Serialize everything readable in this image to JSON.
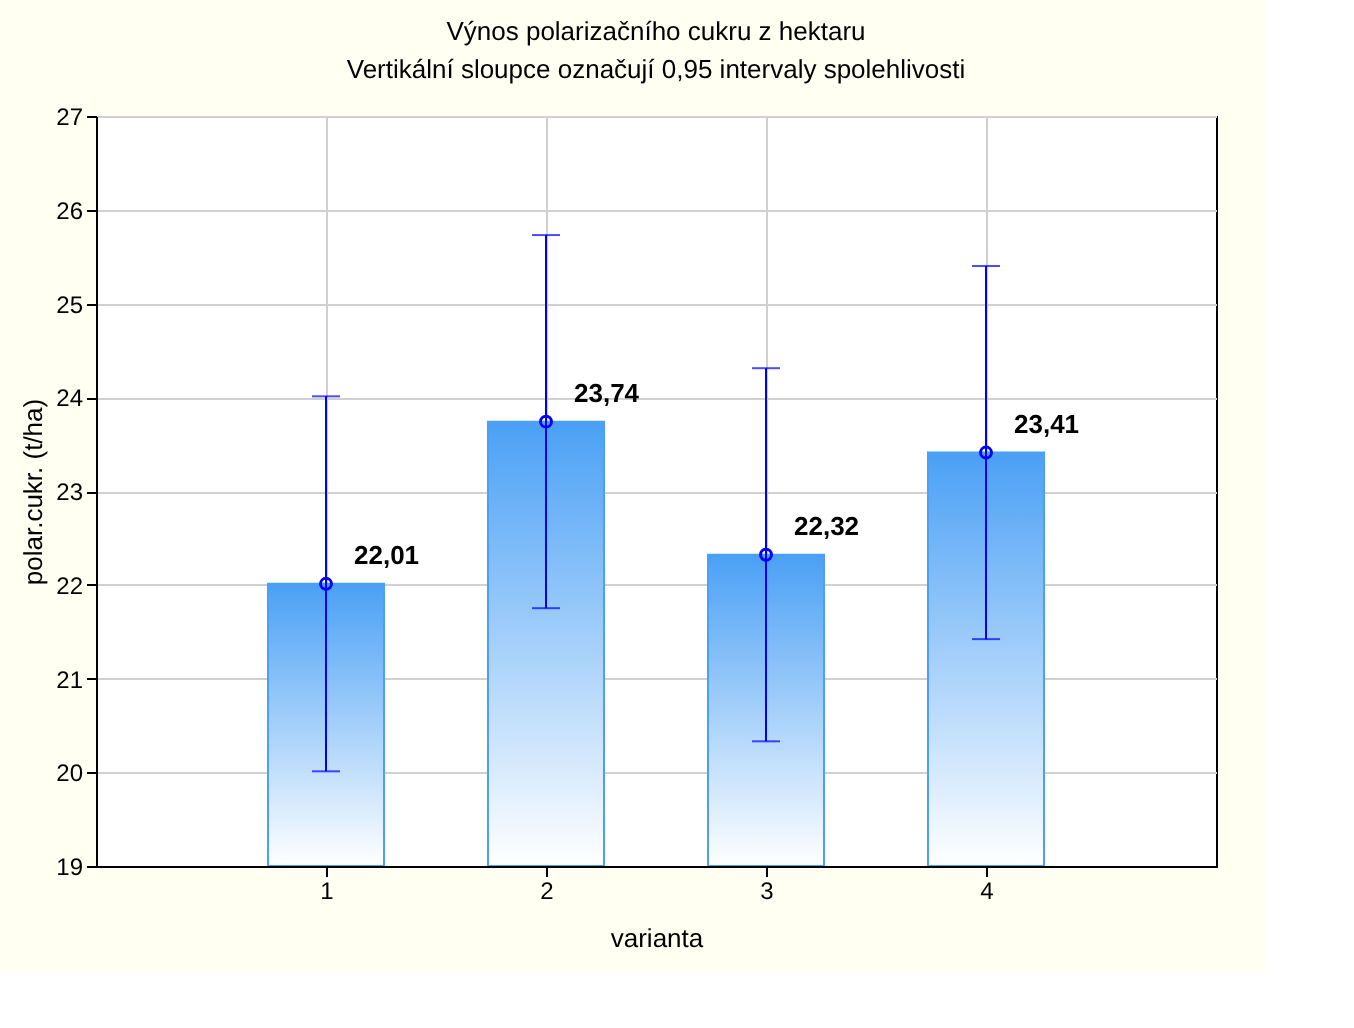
{
  "chart_data": {
    "type": "bar",
    "title": "Výnos polarizačního cukru z hektaru",
    "subtitle": "Vertikální sloupce označují 0,95 intervaly spolehlivosti",
    "xlabel": "varianta",
    "ylabel": "polar.cukr. (t/ha)",
    "categories": [
      "1",
      "2",
      "3",
      "4"
    ],
    "series": [
      {
        "color": "#4aa0f5",
        "values": [
          22.01,
          23.74,
          22.32,
          23.41
        ]
      },
      {
        "type": "scatter",
        "x": [
          "1",
          "2",
          "3",
          "4"
        ],
        "color": "#0000ff",
        "values": [
          22.01,
          23.74,
          22.32,
          23.41
        ],
        "errors": [
          2.0,
          1.99,
          1.99,
          1.99
        ],
        "value_labels": [
          "22,01",
          "23,74",
          "22,32",
          "23,41"
        ]
      }
    ],
    "ylim": [
      19,
      27
    ],
    "yticks": [
      19,
      20,
      21,
      22,
      23,
      24,
      25,
      26,
      27
    ],
    "grid": true,
    "marker": "circle"
  }
}
